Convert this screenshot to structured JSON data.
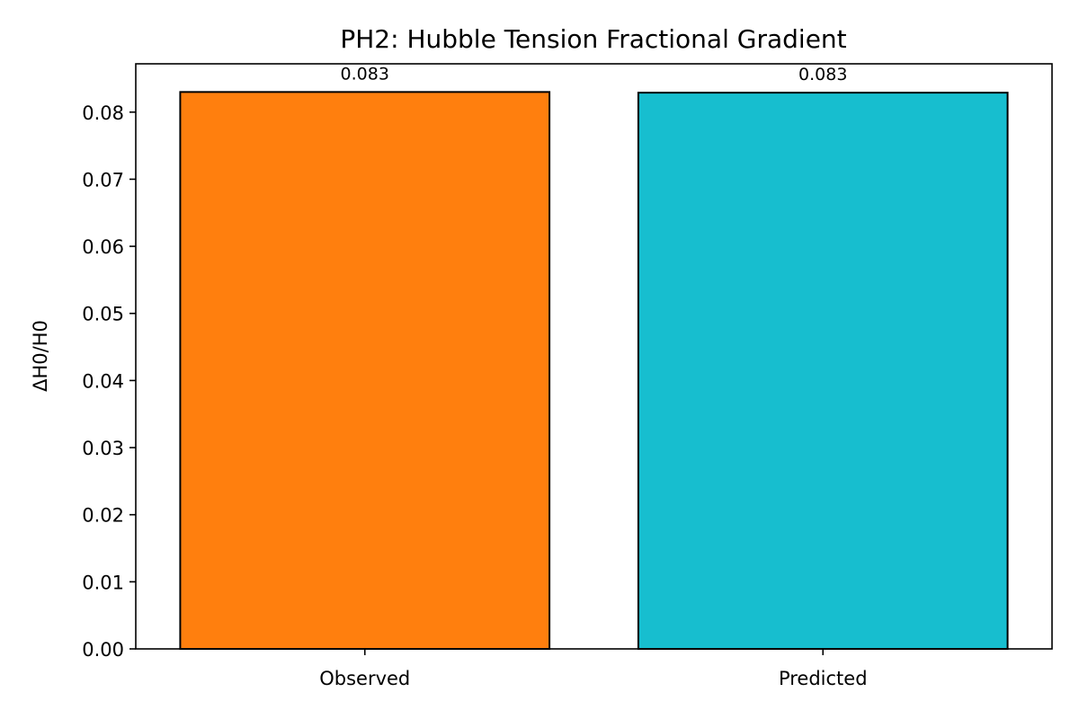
{
  "chart_data": {
    "type": "bar",
    "title": "PH2: Hubble Tension Fractional Gradient",
    "xlabel": "",
    "ylabel": "ΔH0/H0",
    "categories": [
      "Observed",
      "Predicted"
    ],
    "values": [
      0.083,
      0.0829
    ],
    "data_labels": [
      "0.083",
      "0.083"
    ],
    "colors": [
      "#ff7f0e",
      "#17becf"
    ],
    "edge_color": "#000000",
    "ylim": [
      0,
      0.0872
    ],
    "yticks": [
      0.0,
      0.01,
      0.02,
      0.03,
      0.04,
      0.05,
      0.06,
      0.07,
      0.08
    ],
    "ytick_labels": [
      "0.00",
      "0.01",
      "0.02",
      "0.03",
      "0.04",
      "0.05",
      "0.06",
      "0.07",
      "0.08"
    ],
    "grid": false,
    "legend": "none"
  }
}
